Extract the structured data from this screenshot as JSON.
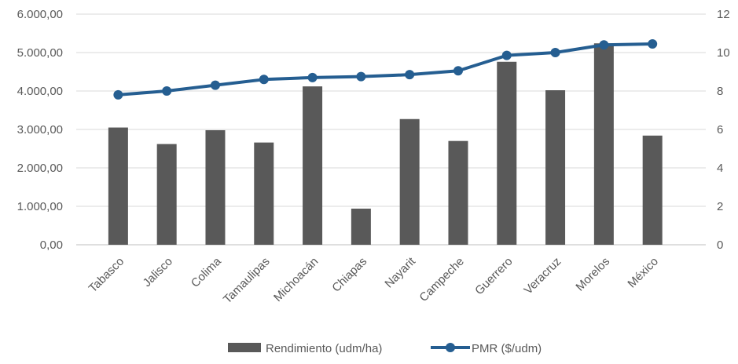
{
  "chart_data": {
    "type": "bar",
    "categories": [
      "Tabasco",
      "Jalisco",
      "Colima",
      "Tamaulipas",
      "Michoacán",
      "Chiapas",
      "Nayarit",
      "Campeche",
      "Guerrero",
      "Veracruz",
      "Morelos",
      "México"
    ],
    "series": [
      {
        "name": "Rendimiento (udm/ha)",
        "type": "bar",
        "axis": "left",
        "color": "#595959",
        "values": [
          3050,
          2620,
          2980,
          2660,
          4120,
          940,
          3270,
          2700,
          4760,
          4020,
          5240,
          2840
        ]
      },
      {
        "name": "PMR ($/udm)",
        "type": "line",
        "axis": "right",
        "color": "#255E91",
        "values": [
          7.8,
          8.0,
          8.3,
          8.6,
          8.7,
          8.75,
          8.85,
          9.05,
          9.85,
          10.0,
          10.4,
          10.45
        ]
      }
    ],
    "y_left": {
      "ylim": [
        0,
        6000
      ],
      "ticks": [
        0,
        1000,
        2000,
        3000,
        4000,
        5000,
        6000
      ],
      "tick_labels": [
        "0,00",
        "1.000,00",
        "2.000,00",
        "3.000,00",
        "4.000,00",
        "5.000,00",
        "6.000,00"
      ]
    },
    "y_right": {
      "ylim": [
        0,
        12
      ],
      "ticks": [
        0,
        2,
        4,
        6,
        8,
        10,
        12
      ],
      "tick_labels": [
        "0",
        "2",
        "4",
        "6",
        "8",
        "10",
        "12"
      ]
    },
    "grid": true,
    "legend_position": "bottom"
  }
}
